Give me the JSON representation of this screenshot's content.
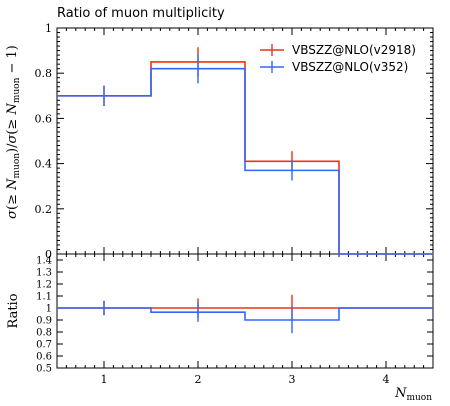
{
  "chart_data": {
    "type": "histogram",
    "title": "Ratio of muon multiplicity",
    "ylabel": "σ(≥ N_muon)/σ(≥ N_muon − 1)",
    "xlabel": "N_muon",
    "ratio_ylabel": "Ratio",
    "xlim": [
      0.5,
      4.5
    ],
    "ylim": [
      0,
      1
    ],
    "ratio_ylim": [
      0.5,
      1.45
    ],
    "x_ticks": [
      "1",
      "2",
      "3",
      "4"
    ],
    "y_ticks": [
      "0",
      "0.2",
      "0.4",
      "0.6",
      "0.8",
      "1"
    ],
    "ratio_y_ticks": [
      "0.5",
      "0.6",
      "0.7",
      "0.8",
      "0.9",
      "1",
      "1.1",
      "1.2",
      "1.3",
      "1.4"
    ],
    "legend_position": "top-right",
    "bin_edges": [
      0.5,
      1.5,
      2.5,
      3.5,
      4.5
    ],
    "series": [
      {
        "name": "VBSZZ@NLO(v2918)",
        "color": "#ee3311",
        "values": [
          0.7,
          0.85,
          0.41,
          0.0
        ],
        "errors": [
          0.045,
          0.065,
          0.045,
          0.0
        ],
        "ratio": [
          1.0,
          1.0,
          1.0,
          1.0
        ],
        "ratio_errors": [
          0.06,
          0.08,
          0.11,
          0.0
        ]
      },
      {
        "name": "VBSZZ@NLO(v352)",
        "color": "#3366ff",
        "values": [
          0.7,
          0.82,
          0.37,
          0.0
        ],
        "errors": [
          0.045,
          0.065,
          0.045,
          0.0
        ],
        "ratio": [
          1.0,
          0.965,
          0.9,
          1.0
        ],
        "ratio_errors": [
          0.06,
          0.08,
          0.11,
          0.0
        ]
      }
    ]
  }
}
